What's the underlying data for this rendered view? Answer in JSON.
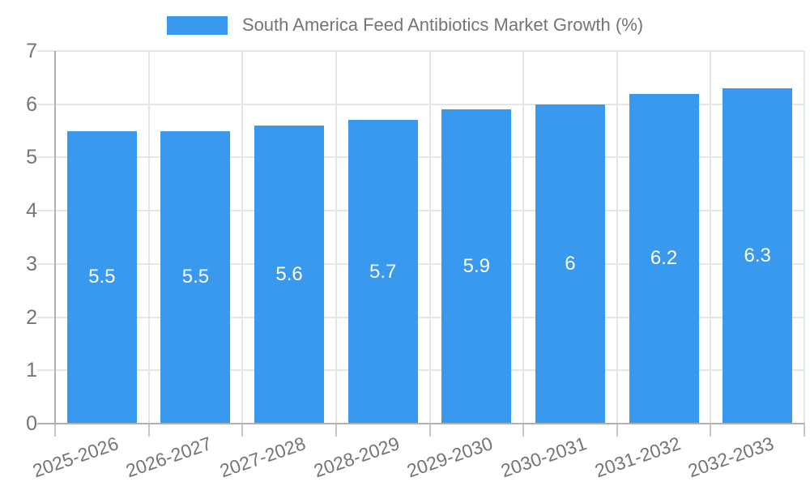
{
  "legend": {
    "label": "South America Feed Antibiotics Market Growth (%)"
  },
  "colors": {
    "bar": "#3999ee",
    "grid": "#e6e6e6",
    "axis": "#b0b0b0",
    "tick": "#c6c6c6",
    "text": "#757575",
    "bar_label": "#ffffff",
    "background": "#ffffff"
  },
  "chart_data": {
    "type": "bar",
    "title": "South America Feed Antibiotics Market Growth (%)",
    "categories": [
      "2025-2026",
      "2026-2027",
      "2027-2028",
      "2028-2029",
      "2029-2030",
      "2030-2031",
      "2031-2032",
      "2032-2033"
    ],
    "values": [
      5.5,
      5.5,
      5.6,
      5.7,
      5.9,
      6,
      6.2,
      6.3
    ],
    "value_labels": [
      "5.5",
      "5.5",
      "5.6",
      "5.7",
      "5.9",
      "6",
      "6.2",
      "6.3"
    ],
    "xlabel": "",
    "ylabel": "",
    "ylim": [
      0,
      7
    ],
    "yticks": [
      0,
      1,
      2,
      3,
      4,
      5,
      6,
      7
    ],
    "grid": true,
    "legend_position": "top",
    "bar_label_position": "inside-center"
  }
}
